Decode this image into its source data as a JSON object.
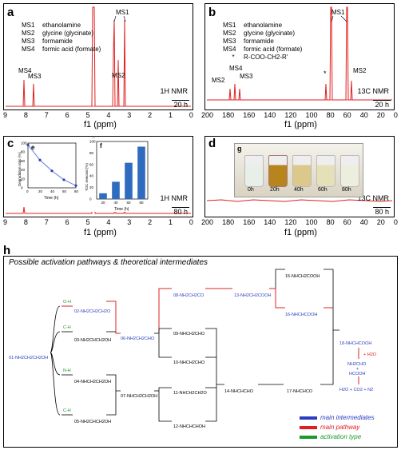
{
  "panel_a": {
    "label": "a",
    "legend": [
      {
        "code": "MS1",
        "name": "ethanolamine"
      },
      {
        "code": "MS2",
        "name": "glycine (glycinate)"
      },
      {
        "code": "MS3",
        "name": "formamide"
      },
      {
        "code": "MS4",
        "name": "formic acid (formate)"
      }
    ],
    "nmr": "1H NMR",
    "time": "20 h",
    "xlabel": "f1 (ppm)",
    "xticks": [
      "9",
      "8",
      "7",
      "6",
      "5",
      "4",
      "3",
      "2",
      "1",
      "0"
    ],
    "peak_labels": [
      "MS1",
      "MS2",
      "MS3",
      "MS4"
    ]
  },
  "panel_b": {
    "label": "b",
    "legend": [
      {
        "code": "MS1",
        "name": "ethanolamine"
      },
      {
        "code": "MS2",
        "name": "glycine (glycinate)"
      },
      {
        "code": "MS3",
        "name": "formamide"
      },
      {
        "code": "MS4",
        "name": "formic acid (formate)"
      },
      {
        "code": "*",
        "name": "R-COO-CH2-R'"
      }
    ],
    "nmr": "13C NMR",
    "time": "20 h",
    "xlabel": "f1 (ppm)",
    "xticks": [
      "200",
      "180",
      "160",
      "140",
      "120",
      "100",
      "80",
      "60",
      "40",
      "20",
      "0"
    ],
    "peak_labels": [
      "MS1",
      "MS2",
      "MS4",
      "MS3",
      "MS2"
    ]
  },
  "panel_c": {
    "label": "c",
    "nmr": "1H NMR",
    "time": "80 h",
    "xlabel": "f1 (ppm)",
    "xticks": [
      "9",
      "8",
      "7",
      "6",
      "5",
      "4",
      "3",
      "2",
      "1",
      "0"
    ],
    "inset_e": {
      "label": "e",
      "ylabel": "Degradation ratio (%)",
      "xlabel": "Time (h)",
      "xticks": [
        "0",
        "20",
        "40",
        "60",
        "80"
      ],
      "yticks": [
        "0",
        "20",
        "40",
        "60",
        "80",
        "100"
      ]
    },
    "inset_f": {
      "label": "f",
      "ylabel": "TOC removal (%)",
      "xlabel": "Time (h)",
      "xticks": [
        "20",
        "40",
        "60",
        "80"
      ],
      "yticks": [
        "0",
        "20",
        "40",
        "60",
        "80",
        "100"
      ]
    }
  },
  "panel_d": {
    "label": "d",
    "nmr": "13C NMR",
    "time": "80 h",
    "xlabel": "f1 (ppm)",
    "xticks": [
      "200",
      "180",
      "160",
      "140",
      "120",
      "100",
      "80",
      "60",
      "40",
      "20",
      "0"
    ],
    "photo_label": "g",
    "vial_labels": [
      "0h",
      "20h",
      "40h",
      "60h",
      "80h"
    ]
  },
  "panel_h": {
    "label": "h",
    "title": "Possible activation pathways & theoretical intermediates",
    "activation": [
      "O-H",
      "C-H",
      "N-H",
      "C-H"
    ],
    "intermediates": [
      "01-NH2CH2CH2OH",
      "02-NH2CH2CH2O",
      "03-NH2CHCH2OH",
      "04-NHCH2CH2OH",
      "05-NH2CHCH2OH",
      "06-NH2CH2CHO",
      "07-NHCH2CH2OH",
      "08-NH2CH2CO",
      "09-NHCH2CHO",
      "10-NHCH2CHO",
      "11-NHCH2CH2O",
      "12-NHCHCHOH",
      "13-NH2CH2COOH",
      "14-NHCHCHO",
      "15-NHCH2COOH",
      "16-NHCHCOOH",
      "17-NHCHCO",
      "18-NHCHCOOH"
    ],
    "products": [
      "+ H2O",
      "NH2CHO",
      "+",
      "HCOOH",
      "H2O + CO2 + N2"
    ],
    "legend": [
      {
        "text": "main intermediates",
        "color": "#2a3fbf"
      },
      {
        "text": "main pathway",
        "color": "#e02020"
      },
      {
        "text": "activation type",
        "color": "#1a9a2a"
      }
    ]
  },
  "chart_data": [
    {
      "type": "line",
      "title": "",
      "xlabel": "Time (h)",
      "ylabel": "Degradation ratio (%)",
      "x": [
        0,
        20,
        40,
        60,
        80
      ],
      "y": [
        96,
        62,
        38,
        18,
        5
      ],
      "xlim": [
        0,
        80
      ],
      "ylim": [
        0,
        100
      ]
    },
    {
      "type": "bar",
      "title": "",
      "xlabel": "Time (h)",
      "ylabel": "TOC removal (%)",
      "categories": [
        "20",
        "40",
        "60",
        "80"
      ],
      "values": [
        10,
        30,
        63,
        91
      ],
      "ylim": [
        0,
        100
      ]
    }
  ]
}
